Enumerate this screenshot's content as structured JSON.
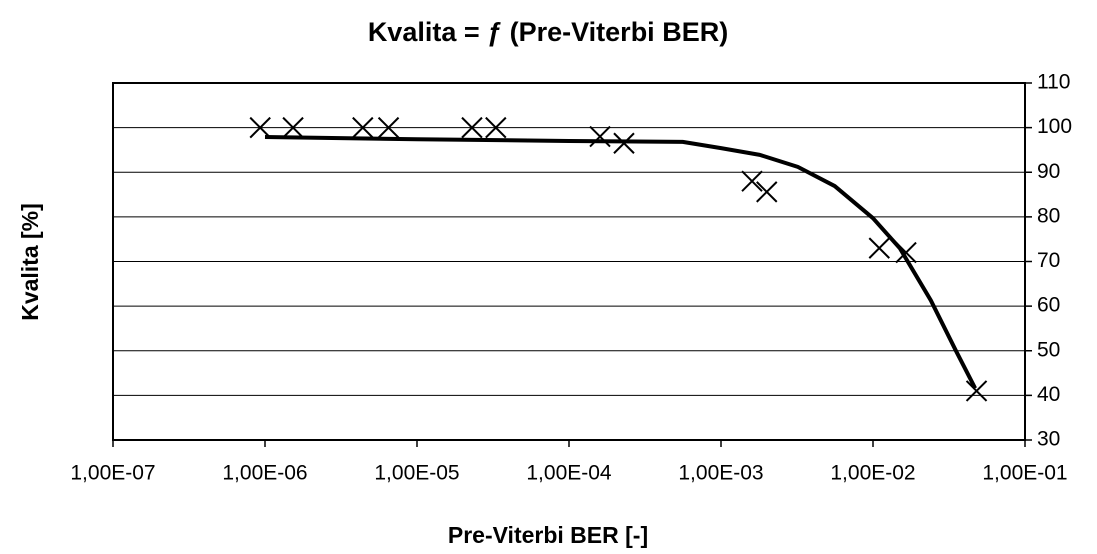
{
  "chart_data": {
    "type": "scatter",
    "title": "Kvalita = ƒ (Pre-Viterbi BER)",
    "x_label": "Pre-Viterbi BER [-]",
    "y_label": "Kvalita [%]",
    "xscale": "log",
    "xlim": [
      1e-07,
      0.1
    ],
    "xticks": [
      {
        "value": 1e-07,
        "label": "1,00E-07"
      },
      {
        "value": 1e-06,
        "label": "1,00E-06"
      },
      {
        "value": 1e-05,
        "label": "1,00E-05"
      },
      {
        "value": 0.0001,
        "label": "1,00E-04"
      },
      {
        "value": 0.001,
        "label": "1,00E-03"
      },
      {
        "value": 0.01,
        "label": "1,00E-02"
      },
      {
        "value": 0.1,
        "label": "1,00E-01"
      }
    ],
    "ylim": [
      30,
      110
    ],
    "yticks": [
      30,
      40,
      50,
      60,
      70,
      80,
      90,
      100,
      110
    ],
    "yaxis_side": "right",
    "grid": true,
    "series": [
      {
        "mode": "markers",
        "color": "#000000",
        "x": [
          9.3e-07,
          1.53e-06,
          4.4e-06,
          6.5e-06,
          2.3e-05,
          3.3e-05,
          0.00016,
          0.00023,
          0.0016,
          0.002,
          0.011,
          0.0165,
          0.048
        ],
        "values": [
          100,
          100,
          100,
          100,
          100,
          100,
          98,
          96.5,
          88,
          85.6,
          73,
          72,
          41
        ]
      },
      {
        "mode": "lines",
        "color": "#000000",
        "x": [
          1e-06,
          1e-05,
          0.0001,
          0.00056,
          0.001,
          0.0018,
          0.0032,
          0.0056,
          0.01,
          0.015,
          0.024,
          0.035,
          0.047
        ],
        "values": [
          97.9,
          97.4,
          97,
          96.8,
          95.4,
          93.9,
          91.2,
          86.9,
          79.7,
          73,
          61.3,
          50.1,
          41.6
        ]
      }
    ]
  }
}
